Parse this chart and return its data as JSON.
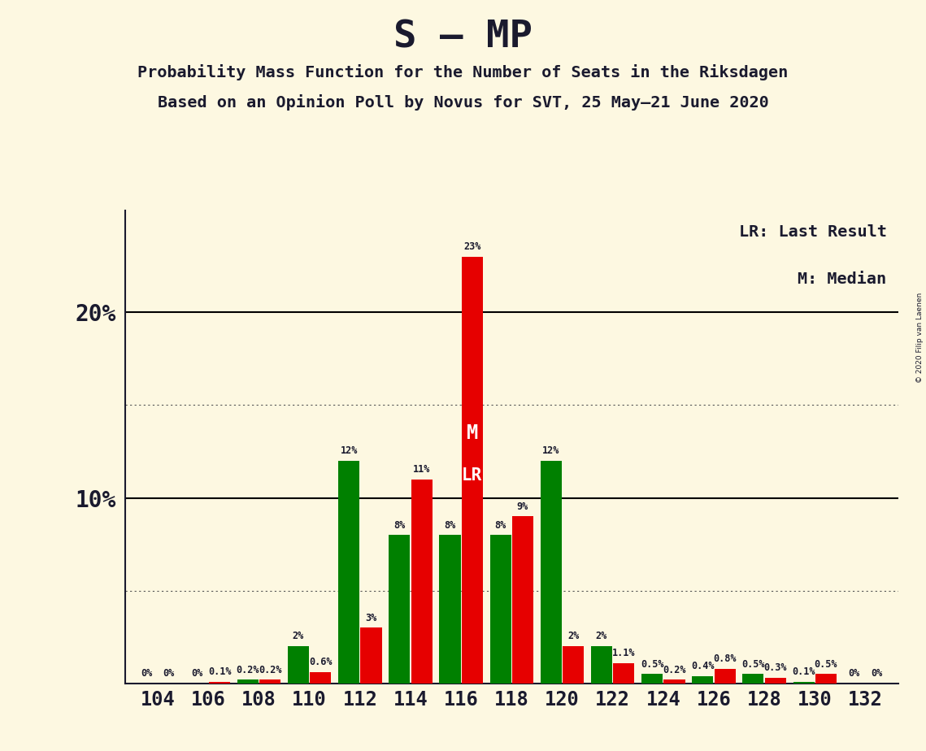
{
  "title": "S – MP",
  "subtitle1": "Probability Mass Function for the Number of Seats in the Riksdagen",
  "subtitle2": "Based on an Opinion Poll by Novus for SVT, 25 May–21 June 2020",
  "copyright": "© 2020 Filip van Laenen",
  "legend_lr": "LR: Last Result",
  "legend_m": "M: Median",
  "seats": [
    104,
    106,
    108,
    110,
    112,
    114,
    116,
    118,
    120,
    122,
    124,
    126,
    128,
    130,
    132
  ],
  "green_values": [
    0.0,
    0.0,
    0.2,
    2.0,
    12.0,
    8.0,
    8.0,
    8.0,
    12.0,
    2.0,
    0.5,
    0.4,
    0.5,
    0.1,
    0.0
  ],
  "red_values": [
    0.0,
    0.1,
    0.2,
    0.6,
    3.0,
    11.0,
    23.0,
    9.0,
    2.0,
    1.1,
    0.2,
    0.8,
    0.3,
    0.5,
    0.0
  ],
  "green_labels": [
    "0%",
    "0%",
    "0.2%",
    "2%",
    "12%",
    "8%",
    "8%",
    "8%",
    "12%",
    "2%",
    "0.5%",
    "0.4%",
    "0.5%",
    "0.1%",
    "0%"
  ],
  "red_labels": [
    "0%",
    "0.1%",
    "0.2%",
    "0.6%",
    "3%",
    "11%",
    "23%",
    "9%",
    "2%",
    "1.1%",
    "0.2%",
    "0.8%",
    "0.3%",
    "0.5%",
    "0%"
  ],
  "red_color": "#e60000",
  "green_color": "#008000",
  "background_color": "#fdf8e1",
  "text_color": "#1a1a2e",
  "median_seat": 116,
  "lr_seat": 116
}
